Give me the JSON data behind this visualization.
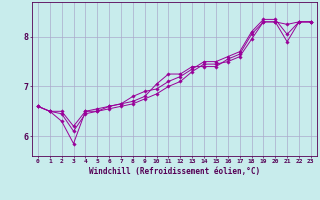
{
  "xlabel": "Windchill (Refroidissement éolien,°C)",
  "bg_color": "#c8ecec",
  "line_color": "#990099",
  "grid_color": "#aaaacc",
  "axis_color": "#550055",
  "text_color": "#550055",
  "xlim": [
    -0.5,
    23.5
  ],
  "ylim": [
    5.6,
    8.7
  ],
  "yticks": [
    6,
    7,
    8
  ],
  "xticks": [
    0,
    1,
    2,
    3,
    4,
    5,
    6,
    7,
    8,
    9,
    10,
    11,
    12,
    13,
    14,
    15,
    16,
    17,
    18,
    19,
    20,
    21,
    22,
    23
  ],
  "series": [
    [
      6.6,
      6.5,
      6.3,
      5.85,
      6.5,
      6.5,
      6.6,
      6.65,
      6.7,
      6.8,
      7.05,
      7.25,
      7.25,
      7.4,
      7.4,
      7.4,
      7.55,
      7.65,
      8.05,
      8.3,
      8.3,
      8.25,
      8.3,
      8.3
    ],
    [
      6.6,
      6.5,
      6.5,
      6.2,
      6.5,
      6.55,
      6.6,
      6.65,
      6.8,
      6.9,
      6.95,
      7.1,
      7.2,
      7.35,
      7.5,
      7.5,
      7.6,
      7.7,
      8.1,
      8.35,
      8.35,
      8.05,
      8.3,
      8.3
    ],
    [
      6.6,
      6.5,
      6.45,
      6.1,
      6.45,
      6.5,
      6.55,
      6.6,
      6.65,
      6.75,
      6.85,
      7.0,
      7.1,
      7.3,
      7.45,
      7.45,
      7.5,
      7.6,
      7.95,
      8.3,
      8.3,
      7.9,
      8.3,
      8.3
    ]
  ]
}
